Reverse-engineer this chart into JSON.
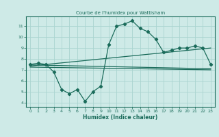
{
  "title": "Courbe de l'humidex pour Wattisham",
  "xlabel": "Humidex (Indice chaleur)",
  "background_color": "#ceeae7",
  "grid_color": "#aad4d0",
  "line_color": "#1a6b5a",
  "x_ticks": [
    0,
    1,
    2,
    3,
    4,
    5,
    6,
    7,
    8,
    9,
    10,
    11,
    12,
    13,
    14,
    15,
    16,
    17,
    18,
    19,
    20,
    21,
    22,
    23
  ],
  "y_ticks": [
    4,
    5,
    6,
    7,
    8,
    9,
    10,
    11
  ],
  "ylim": [
    3.6,
    11.9
  ],
  "xlim": [
    -0.5,
    23.5
  ],
  "main_curve_x": [
    0,
    1,
    2,
    3,
    4,
    5,
    6,
    7,
    8,
    9,
    10,
    11,
    12,
    13,
    14,
    15,
    16,
    17,
    18,
    19,
    20,
    21,
    22,
    23
  ],
  "main_curve_y": [
    7.5,
    7.6,
    7.5,
    6.8,
    5.2,
    4.8,
    5.2,
    4.1,
    5.0,
    5.5,
    9.3,
    11.0,
    11.2,
    11.5,
    10.8,
    10.5,
    9.8,
    8.6,
    8.8,
    9.0,
    9.0,
    9.2,
    9.0,
    7.5
  ],
  "line1_x": [
    0,
    23
  ],
  "line1_y": [
    7.45,
    7.1
  ],
  "line2_x": [
    0,
    23
  ],
  "line2_y": [
    7.35,
    9.0
  ],
  "line3_x": [
    0,
    23
  ],
  "line3_y": [
    7.25,
    7.0
  ]
}
